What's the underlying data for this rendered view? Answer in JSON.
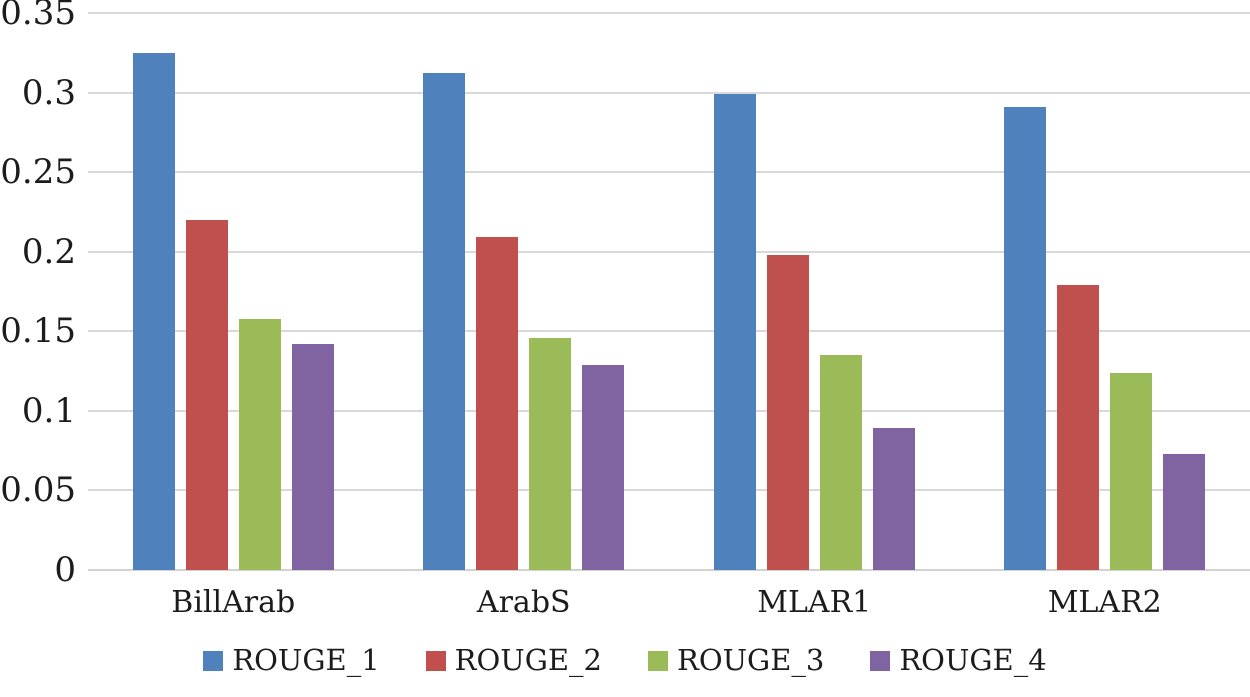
{
  "chart_data": {
    "type": "bar",
    "title": "",
    "xlabel": "",
    "ylabel": "",
    "categories": [
      "BillArab",
      "ArabS",
      "MLAR1",
      "MLAR2"
    ],
    "series": [
      {
        "name": "ROUGE_1",
        "color": "#4f81bd",
        "values": [
          0.325,
          0.312,
          0.299,
          0.291
        ]
      },
      {
        "name": "ROUGE_2",
        "color": "#c0504d",
        "values": [
          0.22,
          0.209,
          0.198,
          0.179
        ]
      },
      {
        "name": "ROUGE_3",
        "color": "#9bbb59",
        "values": [
          0.158,
          0.146,
          0.135,
          0.124
        ]
      },
      {
        "name": "ROUGE_4",
        "color": "#8064a2",
        "values": [
          0.142,
          0.129,
          0.089,
          0.073
        ]
      }
    ],
    "ylim": [
      0,
      0.35
    ],
    "y_tick_values": [
      0,
      0.05,
      0.1,
      0.15,
      0.2,
      0.25,
      0.3,
      0.35
    ],
    "y_tick_labels": [
      "0",
      "0.05",
      "0.1",
      "0.15",
      "0.2",
      "0.25",
      "0.3",
      "0.35"
    ],
    "grid": true,
    "gridline_color": "#d9d9d9",
    "legend_position": "bottom"
  }
}
